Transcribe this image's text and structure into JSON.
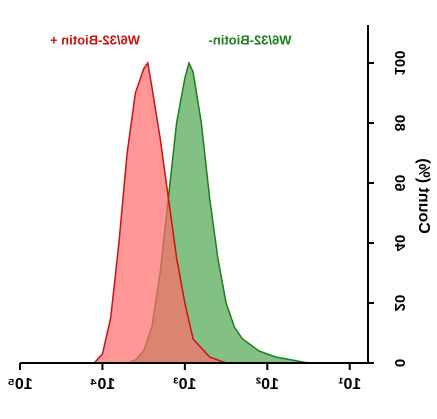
{
  "chart_data": {
    "type": "area",
    "mirrored": true,
    "y_label": "Count (%)",
    "xscale": "log",
    "xlim": [
      6,
      100000
    ],
    "xticks": [
      {
        "value": 10,
        "label": "10¹"
      },
      {
        "value": 100,
        "label": "10²"
      },
      {
        "value": 1000,
        "label": "10³"
      },
      {
        "value": 10000,
        "label": "10⁴"
      },
      {
        "value": 100000,
        "label": "10⁵"
      }
    ],
    "ylim": [
      0,
      110
    ],
    "yticks": [
      0,
      20,
      40,
      60,
      80,
      100
    ],
    "series": [
      {
        "name": "W6/32-Biotin-",
        "color": "#1e7d1e",
        "fill": "#4ea64e",
        "x": [
          32,
          50,
          79,
          100,
          126,
          158,
          200,
          251,
          316,
          398,
          501,
          631,
          794,
          891,
          1000,
          1259,
          1585,
          1995,
          2512,
          3162,
          3981,
          5012
        ],
        "values": [
          0,
          1,
          2,
          3,
          4,
          6,
          8,
          12,
          20,
          35,
          55,
          80,
          97,
          100,
          95,
          80,
          55,
          30,
          12,
          4,
          1,
          0
        ]
      },
      {
        "name": "W6/32-Biotin +",
        "color": "#cc1111",
        "fill": "#ff6b6b",
        "x": [
          316,
          501,
          794,
          1000,
          1259,
          1585,
          1995,
          2512,
          2818,
          3162,
          3981,
          5012,
          6310,
          7943,
          10000,
          12589
        ],
        "values": [
          0,
          2,
          8,
          20,
          35,
          55,
          75,
          92,
          100,
          98,
          90,
          70,
          40,
          15,
          3,
          0
        ]
      }
    ]
  }
}
